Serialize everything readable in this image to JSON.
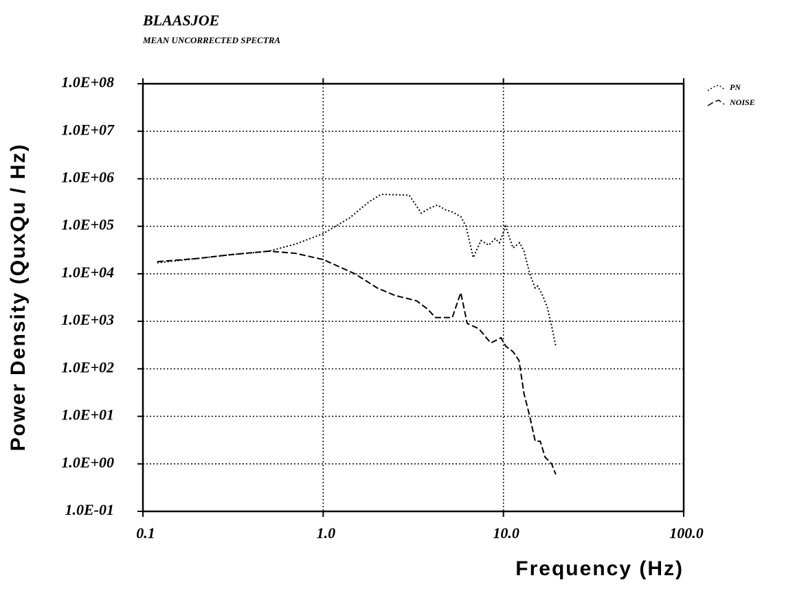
{
  "chart_data": {
    "type": "line",
    "title": "BLAASJOE",
    "subtitle": "MEAN UNCORRECTED SPECTRA",
    "x_label": "Frequency (Hz)",
    "y_label": "Power Density (QuxQu / Hz)",
    "xscale": "log",
    "yscale": "log",
    "grid": true,
    "legend": "top-right",
    "xlim": [
      0.1,
      100
    ],
    "xticks": [
      0.1,
      {
        "value": 1,
        "label": "1.0"
      },
      {
        "value": 10,
        "label": "10.0"
      },
      {
        "value": 100,
        "label": "100.0"
      }
    ],
    "ylim": [
      0.1,
      100000000
    ],
    "yticks": [
      {
        "value": 100000000,
        "label": "1.0E+08"
      },
      {
        "value": 10000000,
        "label": "1.0E+07"
      },
      {
        "value": 1000000,
        "label": "1.0E+06"
      },
      {
        "value": 100000,
        "label": "1.0E+05"
      },
      {
        "value": 10000,
        "label": "1.0E+04"
      },
      {
        "value": 1000,
        "label": "1.0E+03"
      },
      {
        "value": 100,
        "label": "1.0E+02"
      },
      {
        "value": 10,
        "label": "1.0E+01"
      },
      {
        "value": 1,
        "label": "1.0E+00"
      },
      {
        "value": 0.1,
        "label": "1.0E-01"
      }
    ],
    "series": [
      {
        "name": "PN",
        "color": "#000000",
        "style": "dotted",
        "x": [
          0.12,
          0.2,
          0.3,
          0.5,
          0.7,
          1.0,
          1.4,
          1.8,
          2.1,
          2.6,
          3.0,
          3.5,
          3.9,
          4.3,
          4.8,
          5.2,
          5.8,
          6.2,
          6.8,
          7.5,
          8.3,
          9.0,
          9.5,
          10.3,
          11.3,
          12.3,
          13.0,
          14.0,
          15.0,
          15.5,
          16.5,
          17.5,
          18.5,
          19.5
        ],
        "values": [
          17000,
          21000,
          25000,
          30000,
          42000,
          70000,
          150000,
          330000,
          470000,
          460000,
          450000,
          190000,
          240000,
          280000,
          220000,
          200000,
          160000,
          100000,
          22000,
          50000,
          40000,
          55000,
          45000,
          100000,
          35000,
          45000,
          30000,
          10000,
          5000,
          5500,
          3500,
          2000,
          800,
          300
        ]
      },
      {
        "name": "NOISE",
        "color": "#000000",
        "style": "dashed",
        "x": [
          0.12,
          0.2,
          0.3,
          0.5,
          0.7,
          1.0,
          1.5,
          2.0,
          2.5,
          3.3,
          3.8,
          4.2,
          5.2,
          5.8,
          6.3,
          7.3,
          8.5,
          9.7,
          10.3,
          11.3,
          12.2,
          13.0,
          14.0,
          15.0,
          16.0,
          17.0,
          18.5,
          19.5
        ],
        "values": [
          18000,
          21000,
          25000,
          30000,
          27000,
          20000,
          10000,
          5000,
          3500,
          2700,
          1800,
          1200,
          1200,
          4000,
          900,
          700,
          350,
          450,
          300,
          230,
          150,
          30,
          10,
          3,
          3,
          1.4,
          1,
          0.6
        ]
      }
    ]
  }
}
